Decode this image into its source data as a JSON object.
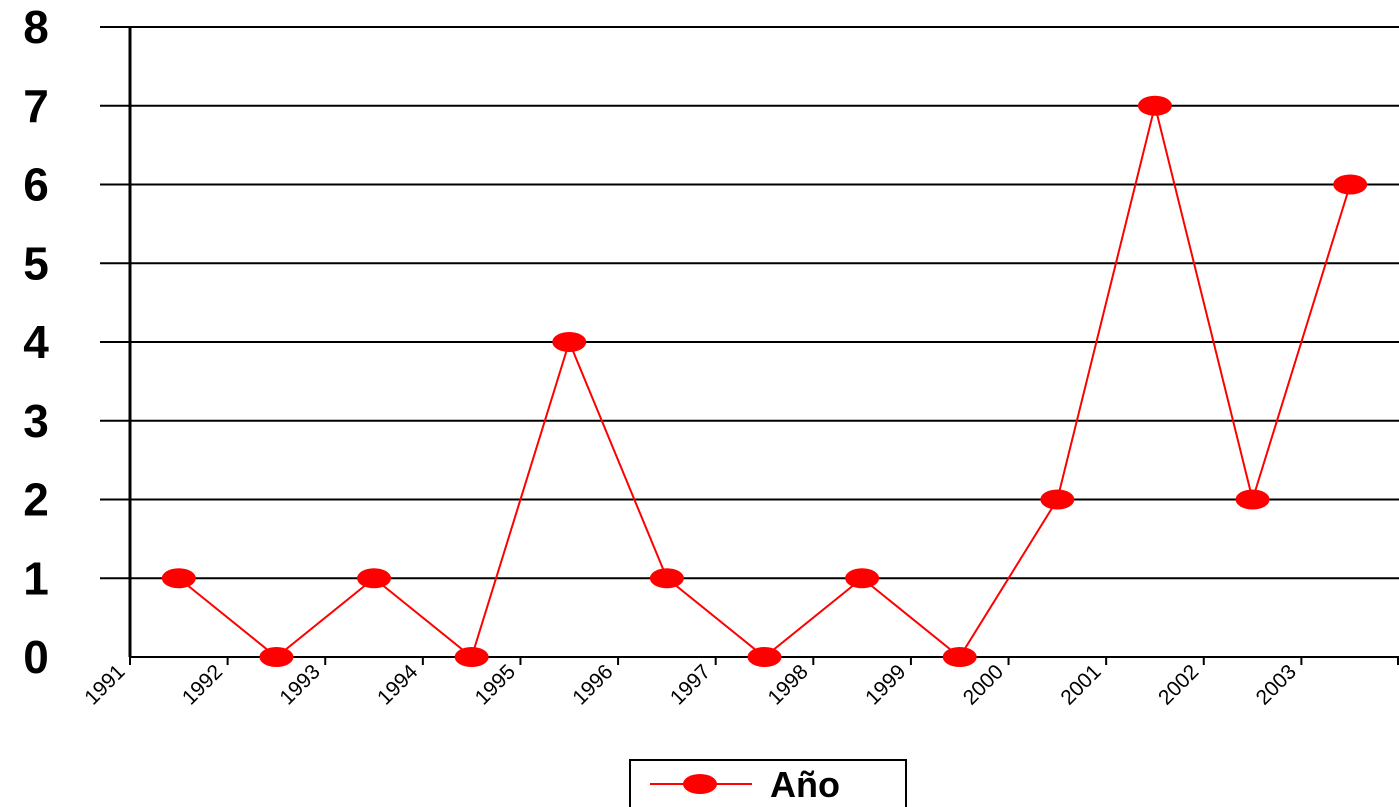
{
  "chart_data": {
    "type": "line",
    "categories": [
      "1991",
      "1992",
      "1993",
      "1994",
      "1995",
      "1996",
      "1997",
      "1998",
      "1999",
      "2000",
      "2001",
      "2002",
      "2003"
    ],
    "series": [
      {
        "name": "Año",
        "color": "#ff0000",
        "values": [
          1,
          0,
          1,
          0,
          4,
          1,
          0,
          1,
          0,
          2,
          7,
          2,
          6
        ]
      }
    ],
    "ylim": [
      0,
      8
    ],
    "yticks": [
      "0",
      "1",
      "2",
      "3",
      "4",
      "5",
      "6",
      "7",
      "8"
    ],
    "grid": true,
    "legend_position": "bottom-center"
  }
}
